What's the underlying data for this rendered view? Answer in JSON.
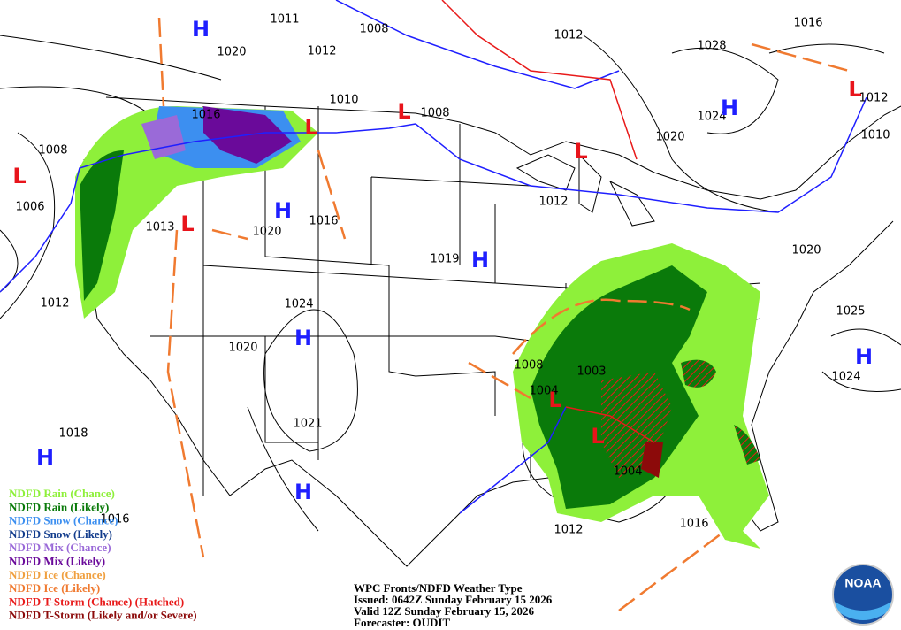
{
  "isobar_labels": [
    "1011",
    "1008",
    "1012",
    "1016",
    "1020",
    "1012",
    "1028",
    "1010",
    "1008",
    "1016",
    "1024",
    "1012",
    "1020",
    "1010",
    "1008",
    "1006",
    "1012",
    "1016",
    "1013",
    "1020",
    "1019",
    "1020",
    "1012",
    "1024",
    "1025",
    "1020",
    "1008",
    "1003",
    "1004",
    "1024",
    "1021",
    "1018",
    "1016",
    "1004",
    "1012",
    "1016"
  ],
  "pressure_centers": [
    {
      "label": "H",
      "color": "#1f1fff"
    },
    {
      "label": "H",
      "color": "#1f1fff"
    },
    {
      "label": "H",
      "color": "#1f1fff"
    },
    {
      "label": "H",
      "color": "#1f1fff"
    },
    {
      "label": "H",
      "color": "#1f1fff"
    },
    {
      "label": "H",
      "color": "#1f1fff"
    },
    {
      "label": "H",
      "color": "#1f1fff"
    },
    {
      "label": "H",
      "color": "#1f1fff"
    },
    {
      "label": "L",
      "color": "#e8141b"
    },
    {
      "label": "L",
      "color": "#e8141b"
    },
    {
      "label": "L",
      "color": "#e8141b"
    },
    {
      "label": "L",
      "color": "#e8141b"
    },
    {
      "label": "L",
      "color": "#e8141b"
    },
    {
      "label": "L",
      "color": "#e8141b"
    },
    {
      "label": "L",
      "color": "#e8141b"
    },
    {
      "label": "L",
      "color": "#e8141b"
    }
  ],
  "legend": [
    {
      "label": "NDFD Rain (Chance)",
      "color": "#8ef03a"
    },
    {
      "label": "NDFD Rain (Likely)",
      "color": "#0a7a0a"
    },
    {
      "label": "NDFD Snow (Chance)",
      "color": "#3c8ff0"
    },
    {
      "label": "NDFD Snow (Likely)",
      "color": "#123c8c"
    },
    {
      "label": "NDFD Mix (Chance)",
      "color": "#9a6ad8"
    },
    {
      "label": "NDFD Mix (Likely)",
      "color": "#6a0a9a"
    },
    {
      "label": "NDFD Ice (Chance)",
      "color": "#f0a040"
    },
    {
      "label": "NDFD Ice (Likely)",
      "color": "#f07a30"
    },
    {
      "label": "NDFD T-Storm (Chance) (Hatched)",
      "color": "#e81a1a"
    },
    {
      "label": "NDFD T-Storm (Likely and/or Severe)",
      "color": "#8c0a0a"
    }
  ],
  "caption": [
    "WPC Fronts/NDFD Weather Type",
    "Issued: 0642Z Sunday February 15 2026",
    "Valid 12Z Sunday February 15, 2026",
    "Forecaster: OUDIT"
  ],
  "logo": "NOAA"
}
